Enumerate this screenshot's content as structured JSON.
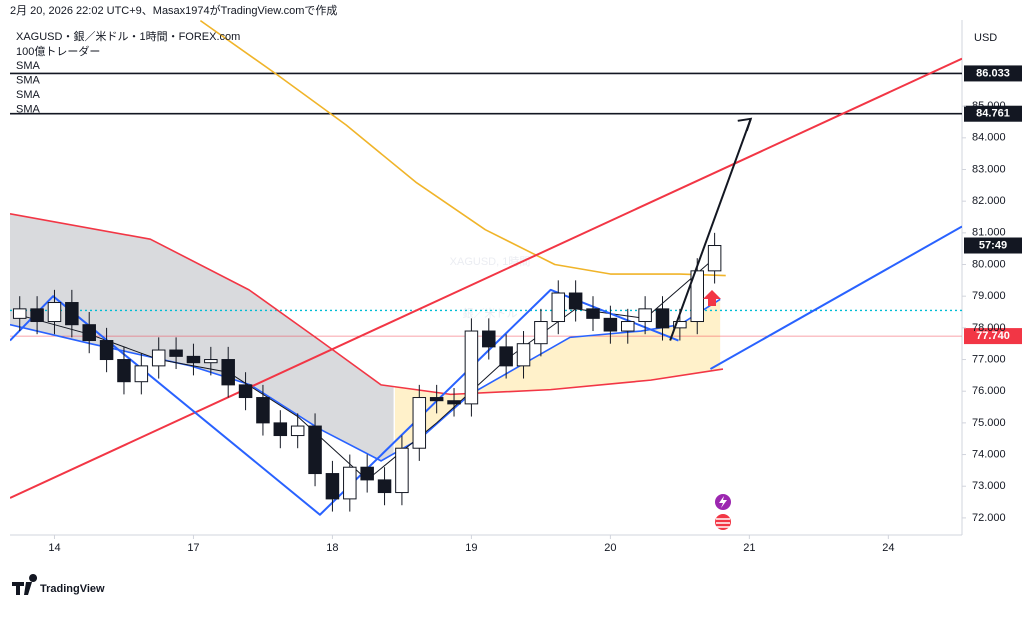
{
  "header": "2月 20, 2026 22:02 UTC+9、Masax1974がTradingView.comで作成",
  "footer": "TradingView",
  "chart_data": {
    "type": "candlestick",
    "title": "XAGUSD・銀／米ドル・1時間・FOREX.com",
    "subtitle": "100億トレーダー",
    "watermark": [
      "XAGUSD, 1時間",
      "銀／米ドル"
    ],
    "currency": "USD",
    "xlim": [
      -0.32,
      6.53
    ],
    "xticks": [
      {
        "value": 0,
        "label": "14"
      },
      {
        "value": 1,
        "label": "17"
      },
      {
        "value": 2,
        "label": "18"
      },
      {
        "value": 3,
        "label": "19"
      },
      {
        "value": 4,
        "label": "20"
      },
      {
        "value": 5,
        "label": "21"
      },
      {
        "value": 6,
        "label": "24"
      }
    ],
    "ylim": [
      71.46,
      87.72
    ],
    "yticks": [
      {
        "value": 72,
        "label": "72.000"
      },
      {
        "value": 73,
        "label": "73.000"
      },
      {
        "value": 74,
        "label": "74.000"
      },
      {
        "value": 75,
        "label": "75.000"
      },
      {
        "value": 76,
        "label": "76.000"
      },
      {
        "value": 77,
        "label": "77.000"
      },
      {
        "value": 78,
        "label": "78.000"
      },
      {
        "value": 79,
        "label": "79.000"
      },
      {
        "value": 80,
        "label": "80.000"
      },
      {
        "value": 81,
        "label": "81.000"
      },
      {
        "value": 82,
        "label": "82.000"
      },
      {
        "value": 83,
        "label": "83.000"
      },
      {
        "value": 84,
        "label": "84.000"
      },
      {
        "value": 85,
        "label": "85.000"
      }
    ],
    "candles": {
      "x": [
        -0.25,
        -0.125,
        0,
        0.125,
        0.25,
        0.375,
        0.5,
        0.625,
        0.75,
        0.875,
        1,
        1.125,
        1.25,
        1.375,
        1.5,
        1.625,
        1.75,
        1.875,
        2,
        2.125,
        2.25,
        2.375,
        2.5,
        2.625,
        2.75,
        2.875,
        3,
        3.125,
        3.25,
        3.375,
        3.5,
        3.625,
        3.75,
        3.875,
        4,
        4.125,
        4.25,
        4.375,
        4.5,
        4.625,
        4.75
      ],
      "open": [
        78.3,
        78.6,
        78.2,
        78.8,
        78.1,
        77.6,
        77.0,
        76.3,
        76.8,
        77.3,
        77.1,
        76.9,
        77.0,
        76.2,
        75.8,
        75.0,
        74.6,
        74.9,
        73.4,
        72.6,
        73.6,
        73.2,
        72.8,
        74.2,
        75.8,
        75.7,
        75.6,
        77.9,
        77.4,
        76.8,
        77.5,
        78.2,
        79.1,
        78.6,
        78.3,
        77.9,
        78.2,
        78.6,
        78.0,
        78.2,
        79.8
      ],
      "high": [
        79.0,
        79.0,
        79.2,
        79.2,
        78.5,
        78.0,
        77.4,
        77.2,
        77.7,
        77.7,
        77.5,
        77.4,
        77.4,
        76.6,
        76.2,
        75.4,
        75.3,
        75.3,
        73.8,
        74.0,
        74.0,
        73.6,
        74.6,
        76.2,
        76.2,
        76.1,
        78.3,
        78.3,
        77.8,
        77.9,
        78.6,
        79.5,
        79.5,
        79.0,
        78.7,
        78.6,
        79.0,
        79.0,
        78.6,
        80.2,
        81.0
      ],
      "low": [
        77.9,
        77.8,
        77.8,
        77.7,
        77.2,
        76.6,
        75.9,
        75.9,
        76.4,
        76.7,
        76.5,
        76.5,
        75.8,
        75.4,
        74.6,
        74.2,
        74.2,
        73.0,
        72.2,
        72.2,
        72.8,
        72.4,
        72.4,
        73.8,
        75.3,
        75.2,
        75.2,
        77.0,
        76.4,
        76.4,
        77.1,
        77.8,
        78.2,
        77.9,
        77.5,
        77.5,
        77.8,
        77.6,
        77.6,
        77.8,
        79.4
      ],
      "close": [
        78.6,
        78.2,
        78.8,
        78.1,
        77.6,
        77.0,
        76.3,
        76.8,
        77.3,
        77.1,
        76.9,
        77.0,
        76.2,
        75.8,
        75.0,
        74.6,
        74.9,
        73.4,
        72.6,
        73.6,
        73.2,
        72.8,
        74.2,
        75.8,
        75.7,
        75.6,
        77.9,
        77.4,
        76.8,
        77.5,
        78.2,
        79.1,
        78.6,
        78.3,
        77.9,
        78.2,
        78.6,
        78.0,
        78.2,
        79.8,
        80.6
      ]
    },
    "series": [
      {
        "name": "SMA",
        "color": "#f0b429",
        "x": [
          1.05,
          1.6,
          2.1,
          2.6,
          3.1,
          3.6,
          4.0,
          4.5,
          4.83
        ],
        "values": [
          87.7,
          86.0,
          84.4,
          82.6,
          81.1,
          80.0,
          79.7,
          79.7,
          79.65
        ]
      },
      {
        "name": "SMA",
        "color": "#f23645",
        "x": [
          -0.32,
          0.69,
          1.4,
          1.91,
          2.35,
          2.85,
          3.57,
          4.29,
          4.81
        ],
        "values": [
          81.6,
          80.8,
          79.2,
          77.6,
          76.2,
          75.9,
          76.05,
          76.35,
          76.7
        ]
      },
      {
        "name": "SMA",
        "color": "#2962ff",
        "x": [
          -0.32,
          0.26,
          0.98,
          1.41,
          1.91,
          2.35,
          2.63,
          2.99,
          3.35,
          3.71,
          4.22,
          4.5,
          4.79
        ],
        "values": [
          78.1,
          77.5,
          76.8,
          76.2,
          74.8,
          73.8,
          74.5,
          75.9,
          76.8,
          77.7,
          77.9,
          78.1,
          78.9
        ]
      },
      {
        "name": "SMA",
        "color": "#131722",
        "x": [
          -0.25,
          0.25,
          0.75,
          1.25,
          1.75,
          2.25,
          2.75,
          3.25,
          3.75,
          4.25,
          4.75
        ],
        "values": [
          78.4,
          77.8,
          77.0,
          76.6,
          75.2,
          73.2,
          75.0,
          77.0,
          78.6,
          78.3,
          80.2
        ]
      }
    ],
    "trend_lines": [
      {
        "color": "#f23645",
        "x": [
          -0.32,
          6.53
        ],
        "y": [
          72.63,
          86.5
        ]
      },
      {
        "color": "#2962ff",
        "x": [
          -0.32,
          -0.01,
          1.91,
          3.57,
          4.49
        ],
        "y": [
          77.6,
          79.0,
          72.1,
          79.2,
          77.6
        ]
      },
      {
        "color": "#2962ff",
        "x": [
          4.72,
          6.53
        ],
        "y": [
          76.7,
          81.2
        ]
      }
    ],
    "arrow": {
      "color": "#131722",
      "x": [
        4.43,
        5.01
      ],
      "y": [
        77.6,
        84.6
      ]
    },
    "price_lines": [
      86.033,
      84.761,
      {
        "value": 77.74,
        "label": "77.740"
      }
    ],
    "price_line_colors": [
      "#131722",
      "#131722",
      "#f23645"
    ],
    "dotted_line": 78.55,
    "countdown": "57:49"
  }
}
